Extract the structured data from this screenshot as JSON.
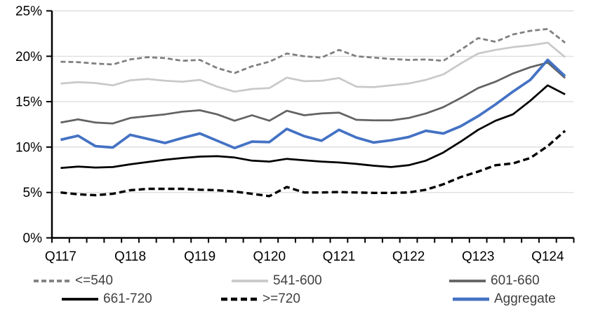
{
  "chart_data": {
    "type": "line",
    "title": "",
    "x_axis": {
      "categories": [
        "Q117",
        "Q217",
        "Q317",
        "Q417",
        "Q118",
        "Q218",
        "Q318",
        "Q418",
        "Q119",
        "Q219",
        "Q319",
        "Q419",
        "Q120",
        "Q220",
        "Q320",
        "Q420",
        "Q121",
        "Q221",
        "Q321",
        "Q421",
        "Q122",
        "Q222",
        "Q322",
        "Q422",
        "Q123",
        "Q223",
        "Q323",
        "Q423",
        "Q124",
        "Q224"
      ],
      "tick_labels": [
        "Q117",
        "Q118",
        "Q119",
        "Q120",
        "Q121",
        "Q122",
        "Q123",
        "Q124"
      ],
      "label_every": 4
    },
    "y_axis": {
      "min": 0,
      "max": 25,
      "step": 5,
      "tick_labels": [
        "0%",
        "5%",
        "10%",
        "15%",
        "20%",
        "25%"
      ],
      "format": "percent"
    },
    "grid": true,
    "gridline_color": "#D9D9D9",
    "axis_color": "#000000",
    "legend_position": "bottom",
    "series": [
      {
        "name": "<=540",
        "color": "#7F7F7F",
        "dash": "short",
        "width": 2.75,
        "values": [
          19.4,
          19.35,
          19.2,
          19.1,
          19.65,
          19.9,
          19.8,
          19.5,
          19.6,
          18.7,
          18.15,
          18.9,
          19.4,
          20.3,
          20.0,
          19.85,
          20.7,
          20.0,
          19.85,
          19.7,
          19.6,
          19.65,
          19.5,
          20.7,
          22.0,
          21.6,
          22.4,
          22.8,
          23.0,
          21.5
        ]
      },
      {
        "name": "541-600",
        "color": "#C9C9C9",
        "dash": "solid",
        "width": 2.75,
        "values": [
          17.0,
          17.15,
          17.05,
          16.8,
          17.35,
          17.5,
          17.3,
          17.2,
          17.4,
          16.65,
          16.1,
          16.4,
          16.5,
          17.65,
          17.25,
          17.3,
          17.6,
          16.65,
          16.6,
          16.8,
          17.0,
          17.4,
          18.0,
          19.2,
          20.3,
          20.7,
          21.0,
          21.2,
          21.5,
          19.9
        ]
      },
      {
        "name": "601-660",
        "color": "#636363",
        "dash": "solid",
        "width": 2.75,
        "values": [
          12.7,
          13.05,
          12.7,
          12.6,
          13.2,
          13.4,
          13.6,
          13.9,
          14.05,
          13.6,
          12.9,
          13.5,
          12.9,
          14.0,
          13.5,
          13.7,
          13.8,
          13.0,
          12.95,
          12.95,
          13.2,
          13.7,
          14.4,
          15.4,
          16.5,
          17.2,
          18.1,
          18.8,
          19.3,
          17.6
        ]
      },
      {
        "name": "661-720",
        "color": "#000000",
        "dash": "solid",
        "width": 2.75,
        "values": [
          7.7,
          7.85,
          7.75,
          7.8,
          8.1,
          8.35,
          8.6,
          8.8,
          8.95,
          9.0,
          8.85,
          8.5,
          8.4,
          8.7,
          8.55,
          8.4,
          8.3,
          8.15,
          7.95,
          7.8,
          8.0,
          8.5,
          9.4,
          10.6,
          11.9,
          12.9,
          13.6,
          15.1,
          16.8,
          15.8
        ]
      },
      {
        "name": ">=720",
        "color": "#000000",
        "dash": "long",
        "width": 3.4,
        "values": [
          5.0,
          4.8,
          4.7,
          4.85,
          5.25,
          5.4,
          5.4,
          5.4,
          5.3,
          5.25,
          5.1,
          4.85,
          4.6,
          5.6,
          5.0,
          5.0,
          5.05,
          5.0,
          4.95,
          4.95,
          5.0,
          5.3,
          5.9,
          6.7,
          7.3,
          8.0,
          8.2,
          8.8,
          10.1,
          11.8
        ]
      },
      {
        "name": "Aggregate",
        "color": "#4472C4",
        "dash": "solid",
        "width": 3.75,
        "values": [
          10.8,
          11.25,
          10.1,
          9.95,
          11.35,
          10.9,
          10.45,
          11.0,
          11.5,
          10.7,
          9.9,
          10.6,
          10.55,
          12.0,
          11.2,
          10.7,
          11.9,
          11.05,
          10.5,
          10.75,
          11.1,
          11.8,
          11.5,
          12.3,
          13.4,
          14.7,
          16.1,
          17.4,
          19.6,
          17.8
        ]
      }
    ],
    "legend_rows": [
      [
        "<=540",
        "541-600",
        "601-660"
      ],
      [
        "661-720",
        ">=720",
        "Aggregate"
      ]
    ]
  }
}
